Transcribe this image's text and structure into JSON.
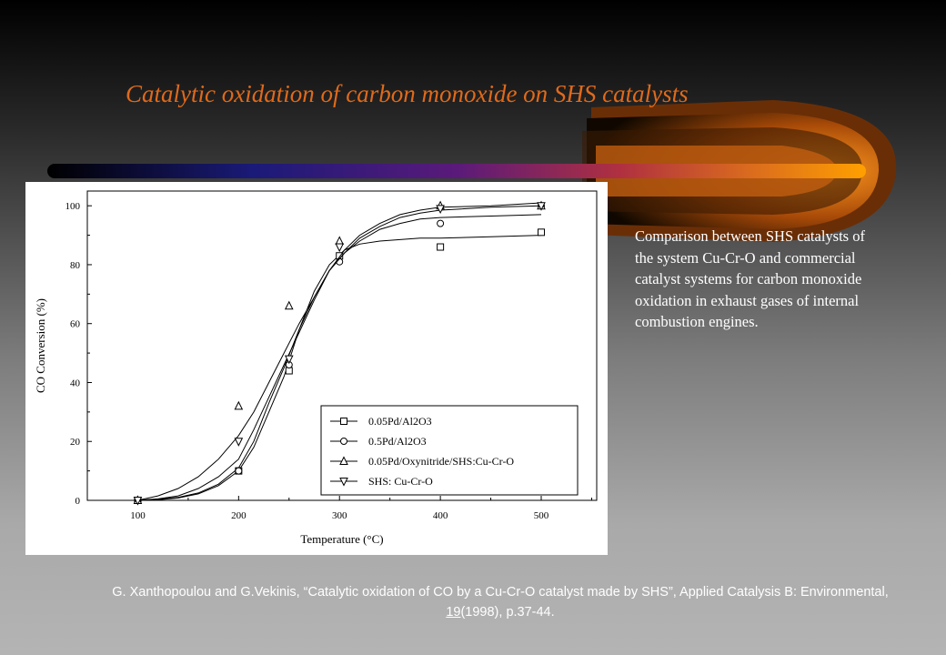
{
  "slide": {
    "title": "Catalytic oxidation of carbon monoxide on SHS catalysts",
    "description": "Comparison between SHS catalysts of the system Cu-Cr-O and commercial catalyst systems for carbon monoxide oxidation in exhaust gases of internal combustion engines.",
    "citation_part1": "G. Xanthopoulou and G.Vekinis, “Catalytic oxidation of CO by a Cu-Cr-O catalyst made by SHS”, Applied Catalysis B: Environmental, ",
    "citation_volume": "19",
    "citation_part2": "(1998), p.37-44."
  },
  "colors": {
    "title": "#e06a1a",
    "bar_start": "#000000",
    "bar_mid": "#1a1a80",
    "bar_end": "#ff9900",
    "flame": "#cc5500"
  },
  "chart_data": {
    "type": "scatter",
    "xlabel": "Temperature (°C)",
    "ylabel": "CO Conversion (%)",
    "xlim": [
      50,
      555
    ],
    "ylim": [
      0,
      105
    ],
    "xticks": [
      "100",
      "200",
      "300",
      "400",
      "500"
    ],
    "yticks": [
      "0",
      "20",
      "40",
      "60",
      "80",
      "100"
    ],
    "legend_position": "bottom-right",
    "series": [
      {
        "name": "0.05Pd/Al2O3",
        "marker": "square",
        "x": [
          100,
          200,
          250,
          300,
          400,
          500
        ],
        "y": [
          0,
          10,
          44,
          83,
          86,
          91
        ],
        "curve_x": [
          100,
          120,
          140,
          160,
          180,
          200,
          215,
          230,
          245,
          260,
          275,
          290,
          305,
          320,
          340,
          360,
          380,
          400,
          450,
          500
        ],
        "curve_y": [
          0,
          0.2,
          0.8,
          2.2,
          5,
          10,
          18,
          30,
          42,
          58,
          71,
          80,
          85,
          87,
          88,
          88.5,
          89,
          89,
          89.5,
          90
        ]
      },
      {
        "name": "0.5Pd/Al2O3",
        "marker": "circle",
        "x": [
          100,
          200,
          250,
          300,
          400,
          500
        ],
        "y": [
          0,
          10,
          46,
          81,
          94,
          100
        ],
        "curve_x": [
          100,
          120,
          140,
          160,
          180,
          200,
          215,
          230,
          245,
          260,
          275,
          290,
          305,
          320,
          340,
          360,
          380,
          400,
          450,
          500
        ],
        "curve_y": [
          0,
          0.4,
          1,
          2.5,
          5.5,
          11,
          20,
          33,
          45,
          58,
          69,
          78,
          84,
          88,
          92,
          94,
          95.5,
          96,
          96.5,
          97
        ]
      },
      {
        "name": "0.05Pd/Oxynitride/SHS:Cu-Cr-O",
        "marker": "triangle-up",
        "x": [
          100,
          200,
          250,
          300,
          400,
          500
        ],
        "y": [
          0,
          32,
          66,
          88,
          100,
          100
        ],
        "curve_x": [
          100,
          120,
          140,
          160,
          180,
          200,
          215,
          230,
          245,
          260,
          275,
          290,
          305,
          320,
          340,
          360,
          380,
          400,
          450,
          500
        ],
        "curve_y": [
          0,
          1.5,
          4,
          8,
          14,
          22,
          30,
          40,
          50,
          60,
          69,
          78,
          84,
          89,
          93,
          96,
          97.5,
          98.5,
          99.5,
          100
        ]
      },
      {
        "name": "SHS: Cu-Cr-O",
        "marker": "triangle-down",
        "x": [
          100,
          200,
          250,
          300,
          400,
          500
        ],
        "y": [
          0,
          20,
          48,
          86,
          99,
          100
        ],
        "curve_x": [
          100,
          120,
          140,
          160,
          180,
          200,
          215,
          230,
          245,
          260,
          275,
          290,
          305,
          320,
          340,
          360,
          380,
          400,
          450,
          500
        ],
        "curve_y": [
          0,
          0.5,
          1.5,
          4,
          8,
          14,
          24,
          35,
          46,
          57,
          68,
          78,
          85,
          90,
          94,
          97,
          98.5,
          99.5,
          100,
          101
        ]
      }
    ]
  }
}
